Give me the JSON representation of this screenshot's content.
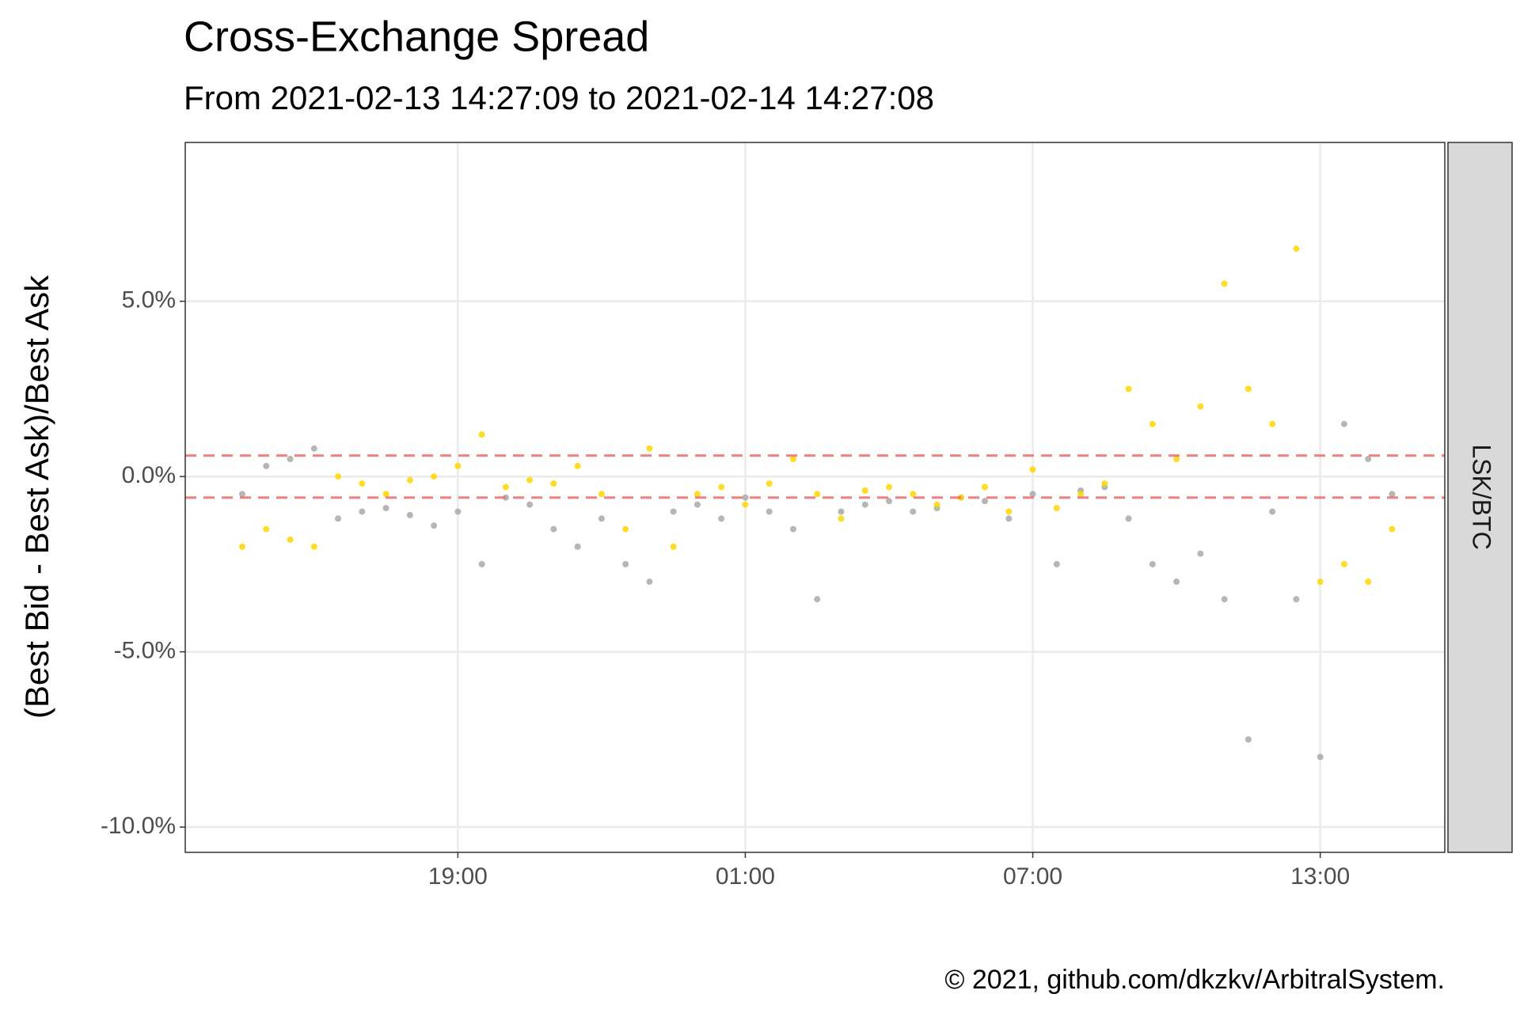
{
  "chart_data": {
    "type": "scatter",
    "title": "Cross-Exchange Spread",
    "subtitle": "From 2021-02-13 14:27:09 to 2021-02-14 14:27:08",
    "y_label": "(Best Bid - Best Ask)/Best Ask",
    "facet_label": "LSK/BTC",
    "caption": "© 2021, github.com/dkzkv/ArbitralSystem.",
    "x": [
      14.5,
      15,
      15.5,
      16,
      16.5,
      17,
      17.5,
      18,
      18.5,
      19,
      19.5,
      20,
      20.5,
      21,
      21.5,
      22,
      22.5,
      23,
      23.5,
      24,
      24.5,
      25,
      25.5,
      26,
      26.5,
      27,
      27.5,
      28,
      28.5,
      29,
      29.5,
      30,
      30.5,
      31,
      31.5,
      32,
      32.5,
      33,
      33.5,
      34,
      34.5,
      35,
      35.5,
      36,
      36.5,
      37,
      37.5,
      38,
      38.5
    ],
    "series": [
      {
        "color": "#A9A9A9",
        "values": [
          -0.5,
          0.3,
          0.5,
          0.8,
          -1.2,
          -1.0,
          -0.9,
          -1.1,
          -1.4,
          -1.0,
          -2.5,
          -0.6,
          -0.8,
          -1.5,
          -2.0,
          -1.2,
          -2.5,
          -3.0,
          -1.0,
          -0.8,
          -1.2,
          -0.6,
          -1.0,
          -1.5,
          -3.5,
          -1.0,
          -0.8,
          -0.7,
          -1.0,
          -0.9,
          -0.6,
          -0.7,
          -1.2,
          -0.5,
          -2.5,
          -0.4,
          -0.3,
          -1.2,
          -2.5,
          -3.0,
          -2.2,
          -3.5,
          -7.5,
          -1.0,
          -3.5,
          -8.0,
          1.5,
          0.5,
          -0.5
        ]
      },
      {
        "color": "#FFD700",
        "values": [
          -2.0,
          -1.5,
          -1.8,
          -2.0,
          0.0,
          -0.2,
          -0.5,
          -0.1,
          0.0,
          0.3,
          1.2,
          -0.3,
          -0.1,
          -0.2,
          0.3,
          -0.5,
          -1.5,
          0.8,
          -2.0,
          -0.5,
          -0.3,
          -0.8,
          -0.2,
          0.5,
          -0.5,
          -1.2,
          -0.4,
          -0.3,
          -0.5,
          -0.8,
          -0.6,
          -0.3,
          -1.0,
          0.2,
          -0.9,
          -0.5,
          -0.2,
          2.5,
          1.5,
          0.5,
          2.0,
          5.5,
          2.5,
          1.5,
          6.5,
          -3.0,
          -2.5,
          -3.0,
          -1.5
        ]
      }
    ],
    "xlim": [
      13.31,
      39.6
    ],
    "ylim": [
      -10.72,
      9.53
    ],
    "xticks": [
      {
        "value": 19,
        "label": "19:00"
      },
      {
        "value": 25,
        "label": "01:00"
      },
      {
        "value": 31,
        "label": "07:00"
      },
      {
        "value": 37,
        "label": "13:00"
      }
    ],
    "yticks": [
      {
        "value": 5,
        "label": "5.0%"
      },
      {
        "value": 0,
        "label": "0.0%"
      },
      {
        "value": -5,
        "label": "-5.0%"
      },
      {
        "value": -10,
        "label": "-10.0%"
      }
    ],
    "grid": true,
    "hlines": [
      0.6,
      -0.6
    ],
    "hline_color": "#EE6A6A"
  }
}
